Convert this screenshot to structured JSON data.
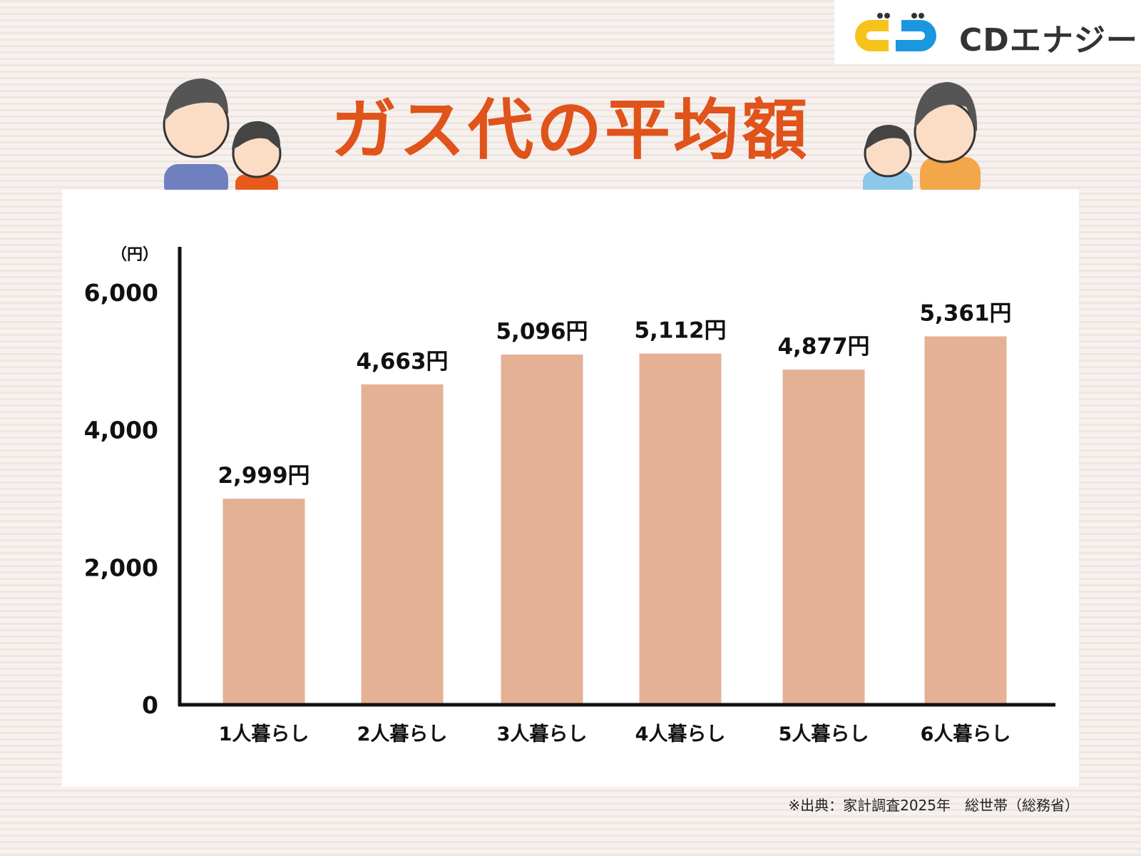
{
  "logo": {
    "text": "CDエナジー",
    "colors": {
      "yellow": "#f6c31a",
      "blue": "#1b97e0"
    }
  },
  "title": "ガス代の平均額",
  "source": "※出典：家計調査2025年　総世帯（総務省）",
  "chart_data": {
    "type": "bar",
    "title": "ガス代の平均額",
    "ylabel": "（円）",
    "xlabel": "",
    "categories": [
      "1人暮らし",
      "2人暮らし",
      "3人暮らし",
      "4人暮らし",
      "5人暮らし",
      "6人暮らし"
    ],
    "values": [
      2999,
      4663,
      5096,
      5112,
      4877,
      5361
    ],
    "data_labels": [
      "2,999円",
      "4,663円",
      "5,096円",
      "5,112円",
      "4,877円",
      "5,361円"
    ],
    "ylim": [
      0,
      6000
    ],
    "yticks": [
      0,
      2000,
      4000,
      6000
    ],
    "ytick_labels": [
      "0",
      "2,000",
      "4,000",
      "6,000"
    ],
    "grid": false,
    "bar_color": "#e4b195",
    "title_color": "#e0531a"
  }
}
